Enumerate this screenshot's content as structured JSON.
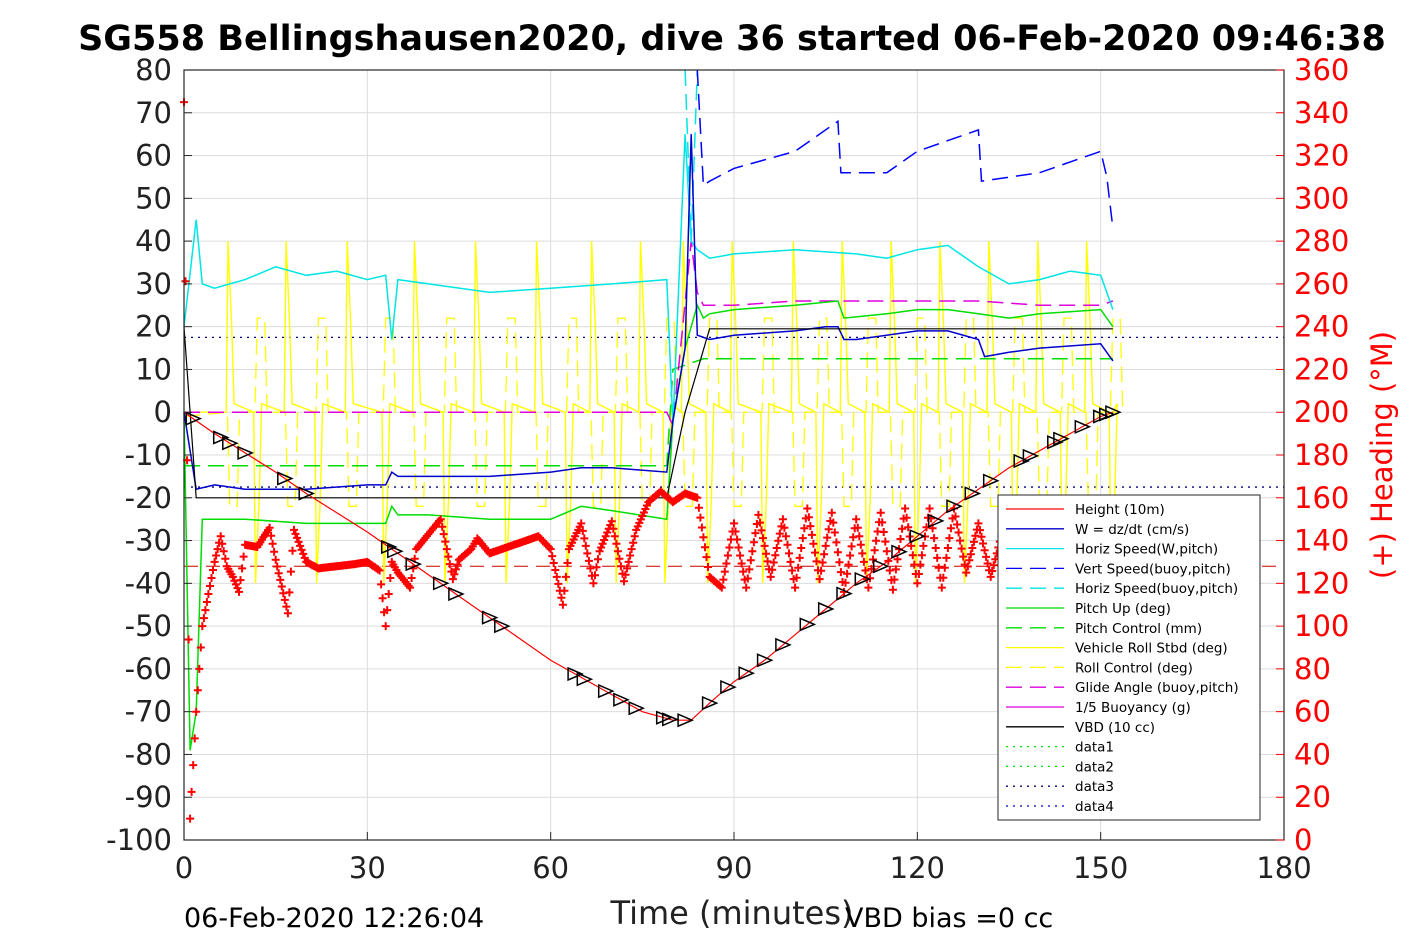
{
  "title": "SG558 Bellingshausen2020, dive 36 started 06-Feb-2020 09:46:38",
  "footer": {
    "date": "06-Feb-2020 12:26:04",
    "vbd_bias": "VBD bias =0 cc"
  },
  "chart_data": {
    "type": "line",
    "xlabel": "Time (minutes)",
    "ylabel": "",
    "y2label": "(+) Heading (°M)",
    "xlim": [
      0,
      180
    ],
    "ylim": [
      -100,
      80
    ],
    "y2lim": [
      0,
      360
    ],
    "xticks": [
      "0",
      "30",
      "60",
      "90",
      "120",
      "150",
      "180"
    ],
    "yticks": [
      "80",
      "70",
      "60",
      "50",
      "40",
      "30",
      "20",
      "10",
      "0",
      "-10",
      "-20",
      "-30",
      "-40",
      "-50",
      "-60",
      "-70",
      "-80",
      "-90",
      "-100"
    ],
    "y2ticks": [
      "360",
      "340",
      "320",
      "300",
      "280",
      "260",
      "240",
      "220",
      "200",
      "180",
      "160",
      "140",
      "120",
      "100",
      "80",
      "60",
      "40",
      "20",
      "0"
    ],
    "grid": true,
    "legend_position": "lower-right",
    "legend": [
      {
        "label": "Height (10m)",
        "color": "#ff0000",
        "style": "solid"
      },
      {
        "label": "W = dz/dt (cm/s)",
        "color": "#0000cc",
        "style": "solid"
      },
      {
        "label": "Horiz Speed(W,pitch)",
        "color": "#00e5e5",
        "style": "solid"
      },
      {
        "label": "Vert Speed(buoy,pitch)",
        "color": "#0000ff",
        "style": "dashed"
      },
      {
        "label": "Horiz Speed(buoy,pitch)",
        "color": "#00e5e5",
        "style": "dashed"
      },
      {
        "label": "Pitch Up (deg)",
        "color": "#00dd00",
        "style": "solid"
      },
      {
        "label": "Pitch Control (mm)",
        "color": "#00dd00",
        "style": "dashed"
      },
      {
        "label": "Vehicle Roll Stbd (deg)",
        "color": "#ffff00",
        "style": "solid"
      },
      {
        "label": "Roll Control (deg)",
        "color": "#ffff00",
        "style": "dashed"
      },
      {
        "label": "Glide Angle (buoy,pitch)",
        "color": "#dd00dd",
        "style": "dashed"
      },
      {
        "label": "1/5 Buoyancy (g)",
        "color": "#dd00dd",
        "style": "solid"
      },
      {
        "label": "VBD (10 cc)",
        "color": "#000000",
        "style": "solid"
      },
      {
        "label": "data1",
        "color": "#00dd00",
        "style": "dotted"
      },
      {
        "label": "data2",
        "color": "#00dd00",
        "style": "dotted"
      },
      {
        "label": "data3",
        "color": "#000080",
        "style": "dotted"
      },
      {
        "label": "data4",
        "color": "#0000cc",
        "style": "dotted"
      }
    ],
    "series": [
      {
        "name": "Height (10m)",
        "x": [
          0,
          5,
          10,
          15,
          20,
          25,
          30,
          35,
          40,
          45,
          50,
          55,
          60,
          65,
          70,
          75,
          80,
          83,
          86,
          90,
          95,
          100,
          105,
          110,
          115,
          120,
          125,
          130,
          135,
          140,
          145,
          150,
          152
        ],
        "y": [
          0,
          -5,
          -9.5,
          -14,
          -19,
          -23.5,
          -28,
          -33,
          -38,
          -43,
          -48,
          -53,
          -58,
          -62,
          -66,
          -70,
          -72,
          -72,
          -68,
          -63,
          -58,
          -52,
          -46,
          -40,
          -35,
          -29,
          -23,
          -18,
          -13,
          -9,
          -5,
          -1,
          0
        ]
      },
      {
        "name": "W = dz/dt (cm/s)",
        "x": [
          0,
          2,
          5,
          10,
          20,
          30,
          33,
          34,
          35,
          40,
          50,
          60,
          65,
          70,
          79,
          80,
          82,
          83,
          84,
          86,
          90,
          100,
          105,
          107,
          108,
          110,
          120,
          125,
          130,
          131,
          135,
          140,
          150,
          152
        ],
        "y": [
          0,
          -18,
          -17,
          -18,
          -18,
          -17,
          -17,
          -14,
          -15,
          -15,
          -15,
          -14,
          -13,
          -13,
          -14,
          -2,
          15,
          65,
          18,
          17,
          18,
          19,
          20,
          20,
          17,
          17,
          19,
          19,
          17,
          13,
          14,
          15,
          16,
          12
        ]
      },
      {
        "name": "Horiz Speed(W,pitch)",
        "x": [
          0,
          2,
          3,
          5,
          10,
          15,
          20,
          25,
          30,
          33,
          34,
          35,
          40,
          50,
          60,
          70,
          79,
          80,
          82,
          83,
          84,
          86,
          90,
          100,
          110,
          115,
          120,
          125,
          130,
          135,
          140,
          145,
          150,
          152
        ],
        "y": [
          20,
          45,
          30,
          29,
          31,
          34,
          32,
          33,
          31,
          32,
          17,
          31,
          30,
          28,
          29,
          30,
          31,
          -3,
          65,
          40,
          38,
          36,
          37,
          38,
          37,
          36,
          38,
          39,
          34,
          30,
          31,
          33,
          32,
          24
        ]
      },
      {
        "name": "Vert Speed(buoy,pitch)",
        "x": [
          84,
          85,
          86,
          90,
          100,
          107,
          107.5,
          115,
          120,
          130,
          130.5,
          140,
          150,
          151,
          152
        ],
        "y": [
          80,
          53,
          54,
          57,
          61,
          68,
          56,
          56,
          61,
          66,
          54,
          56,
          61,
          55,
          43
        ]
      },
      {
        "name": "Horiz Speed(buoy,pitch)",
        "x": [
          82,
          83,
          84
        ],
        "y": [
          80,
          40,
          80
        ]
      },
      {
        "name": "Pitch Up (deg)",
        "x": [
          0,
          1,
          2,
          3,
          5,
          10,
          20,
          30,
          33,
          34,
          35,
          40,
          50,
          60,
          65,
          70,
          79,
          80,
          82,
          83,
          84,
          85,
          86,
          90,
          100,
          107,
          108,
          115,
          120,
          125,
          130,
          135,
          140,
          150,
          152
        ],
        "y": [
          0,
          -79,
          -70,
          -25,
          -25,
          -25,
          -26,
          -26,
          -26,
          -22,
          -24,
          -24,
          -25,
          -25,
          -22,
          -23,
          -25,
          -2,
          15,
          20,
          25,
          22,
          23,
          24,
          25,
          26,
          22,
          23,
          24,
          24,
          23,
          22,
          23,
          24,
          20
        ]
      },
      {
        "name": "Pitch Control (mm)",
        "x": [
          0,
          79,
          80,
          85,
          152
        ],
        "y": [
          -12.5,
          -12.5,
          10,
          12.5,
          12.5
        ]
      },
      {
        "name": "Glide Angle (buoy,pitch)",
        "x": [
          0,
          79,
          80,
          83,
          84,
          85,
          90,
          100,
          110,
          120,
          130,
          140,
          150,
          152
        ],
        "y": [
          0,
          0,
          -3,
          40,
          28,
          25,
          25,
          26,
          26,
          26,
          26,
          25,
          25,
          26
        ]
      },
      {
        "name": "VBD (10 cc)",
        "x": [
          0,
          1,
          2,
          79,
          82,
          86,
          152
        ],
        "y": [
          20,
          0,
          -20,
          -20,
          0,
          19.5,
          19.5
        ]
      }
    ],
    "roll_events_minutes": [
      7.5,
      12,
      17,
      22,
      27,
      33,
      38,
      43,
      48,
      53,
      58,
      63,
      67,
      71,
      75,
      79,
      82,
      86,
      90,
      95,
      100,
      104,
      108,
      112,
      116,
      120,
      124,
      128,
      132,
      136,
      140,
      144,
      148,
      152
    ],
    "heading_profile": {
      "x": [
        0,
        1,
        2,
        3,
        5,
        6,
        7,
        8,
        9,
        10,
        12,
        14,
        15,
        17,
        18,
        20,
        22,
        25,
        28,
        30,
        32,
        33,
        34,
        35,
        37,
        38,
        40,
        42,
        44,
        45,
        47,
        48,
        50,
        52,
        55,
        58,
        60,
        62,
        63,
        65,
        67,
        68,
        70,
        72,
        74,
        76,
        78,
        80,
        82,
        84,
        86,
        88,
        90,
        92,
        94,
        96,
        98,
        100,
        102,
        104,
        106,
        108,
        110,
        112,
        114,
        116,
        118,
        120,
        122,
        124,
        126,
        128,
        130,
        132,
        134,
        136,
        138,
        140,
        142,
        144,
        146,
        148,
        150,
        152
      ],
      "y": [
        345,
        10,
        60,
        100,
        130,
        142,
        128,
        123,
        116,
        138,
        137,
        146,
        131,
        106,
        145,
        130,
        127,
        128,
        129,
        130,
        126,
        100,
        130,
        125,
        118,
        136,
        143,
        150,
        122,
        131,
        136,
        141,
        134,
        136,
        139,
        142,
        136,
        110,
        136,
        148,
        120,
        135,
        149,
        121,
        145,
        158,
        163,
        158,
        162,
        160,
        123,
        118,
        148,
        118,
        152,
        123,
        150,
        118,
        155,
        122,
        153,
        116,
        150,
        118,
        153,
        117,
        155,
        120,
        155,
        118,
        155,
        125,
        148,
        123,
        145,
        127,
        143,
        130,
        145,
        130,
        140,
        131,
        135,
        128
      ]
    },
    "reference_lines": {
      "red_dashed_heading": 128,
      "navy_dotted_upper": 17.5,
      "navy_dotted_lower": -17.5
    }
  }
}
